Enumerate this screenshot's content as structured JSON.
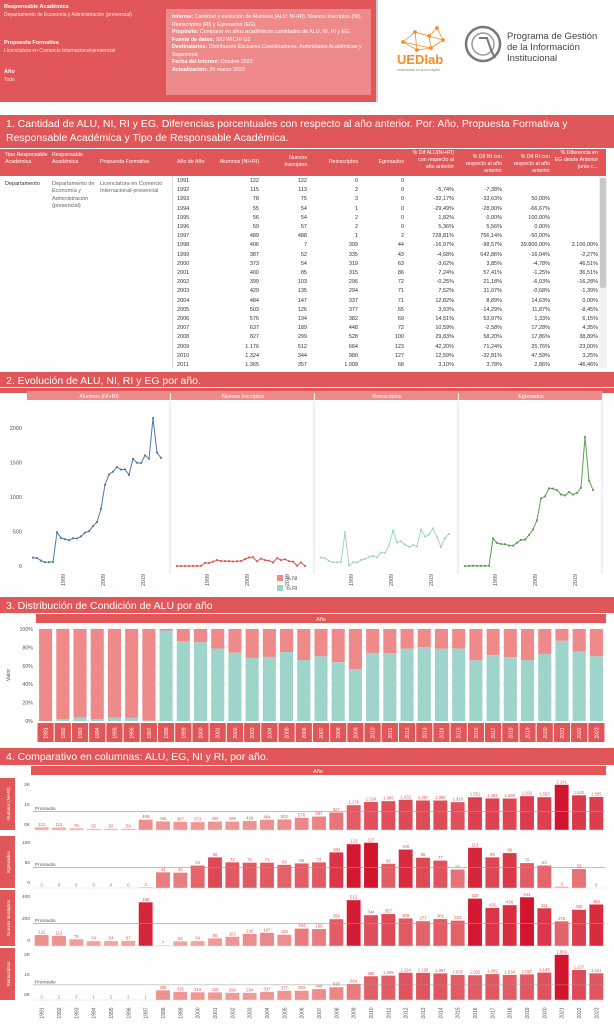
{
  "header": {
    "responsable_label": "Responsable Académica",
    "responsable_value": "Departamento de Economía y Administración (presencial)",
    "propuesta_label": "Propuesta Formativa",
    "propuesta_value": "Licenciatura en Comercio Internacional-presencial",
    "anio_label": "Año",
    "anio_value": "Todo"
  },
  "info": {
    "informe_label": "Informe:",
    "informe_value": "Cantidad y evolución de Alumnos (ALU: NI+RI), Nuevos Inscriptos (NI), Reinscriptos (RI) y Egresados (EG).",
    "proposito_label": "Propósito:",
    "proposito_value": "Comparar en años académicos cantidades de ALU, NI, RI y EG.",
    "fuente_label": "Fuente de datos:",
    "fuente_value": "SIU WICHI G3",
    "destinatarios_label": "Destinatarios:",
    "destinatarios_value": "Distribución Exclusiva Coordinadores, Autoridades Académicas y Superiores",
    "fecha_label": "Fecha del Informe:",
    "fecha_value": "Octubre 2022",
    "actualizacion_label": "Actualización:",
    "actualizacion_value": "20 marzo 2023"
  },
  "logos": {
    "ued": "UEDlab",
    "ued_sub": "universidad en la era digital",
    "prog_line1": "Programa de Gestión",
    "prog_line2": "de la Información",
    "prog_line3": "Institucional"
  },
  "colors": {
    "brand": "#e15759",
    "pink": "#ef8a8b",
    "teal": "#9fd4cb",
    "blue": "#4e79a7",
    "green": "#59a14f"
  },
  "sections": {
    "s1": "1. Cantidad de ALU, NI, RI y EG. Diferencias porcentuales con respecto al año anterior. Por: Año, Propuesta Formativa y Responsable Académica y Tipo de Responsable Académica.",
    "s2": "2. Evolución de ALU, NI, RI y EG por año.",
    "s3": "3. Distribución de Condición de ALU por año",
    "s4": "4. Comparativo en columnas: ALU, EG, NI y RI, por año."
  },
  "table": {
    "headers": [
      "Tipo Responsable Académica",
      "Responsable Académica",
      "Propuesta Formativa",
      "Año de Año",
      "Alumnos (NI+RI)",
      "Nuevos Inscriptos",
      "Reinscriptos",
      "Egresados",
      "% Dif ALU(NI+RI) con respecto al año anterior",
      "% Dif NI con respecto al año anterior",
      "% Dif RI con respecto al año anterior",
      "% Diferencia en EG desde Anterior junto c..."
    ],
    "tipo": "Departamento",
    "responsable": "Departamento de Economía y Administración (presencial)",
    "propuesta": "Licenciatura en Comercio Internacional-presencial",
    "rows": [
      [
        "1991",
        "122",
        "122",
        "0",
        "0",
        "",
        "",
        "",
        ""
      ],
      [
        "1992",
        "115",
        "113",
        "2",
        "0",
        "-5,74%",
        "-7,38%",
        "",
        ""
      ],
      [
        "1993",
        "78",
        "75",
        "3",
        "0",
        "-32,17%",
        "-33,63%",
        "50,00%",
        ""
      ],
      [
        "1994",
        "55",
        "54",
        "1",
        "0",
        "-29,49%",
        "-28,00%",
        "-66,67%",
        ""
      ],
      [
        "1995",
        "56",
        "54",
        "2",
        "0",
        "1,82%",
        "0,00%",
        "100,00%",
        ""
      ],
      [
        "1996",
        "59",
        "57",
        "2",
        "0",
        "5,36%",
        "5,56%",
        "0,00%",
        ""
      ],
      [
        "1997",
        "489",
        "488",
        "1",
        "2",
        "728,81%",
        "756,14%",
        "-50,00%",
        ""
      ],
      [
        "1998",
        "406",
        "7",
        "399",
        "44",
        "-16,97%",
        "-98,57%",
        "39.800,00%",
        "2.100,00%"
      ],
      [
        "1999",
        "387",
        "52",
        "335",
        "43",
        "-4,68%",
        "642,86%",
        "-16,04%",
        "-2,27%"
      ],
      [
        "2000",
        "373",
        "54",
        "319",
        "63",
        "-3,62%",
        "3,85%",
        "-4,78%",
        "46,51%"
      ],
      [
        "2001",
        "400",
        "85",
        "315",
        "86",
        "7,24%",
        "57,41%",
        "-1,25%",
        "36,51%"
      ],
      [
        "2002",
        "399",
        "103",
        "296",
        "72",
        "-0,25%",
        "21,18%",
        "-6,03%",
        "-16,28%"
      ],
      [
        "2003",
        "429",
        "135",
        "294",
        "71",
        "7,52%",
        "31,07%",
        "-0,68%",
        "-1,39%"
      ],
      [
        "2004",
        "484",
        "147",
        "337",
        "71",
        "12,82%",
        "8,89%",
        "14,63%",
        "0,00%"
      ],
      [
        "2005",
        "503",
        "126",
        "377",
        "65",
        "3,93%",
        "-14,29%",
        "11,87%",
        "-8,45%"
      ],
      [
        "2006",
        "576",
        "194",
        "382",
        "69",
        "14,51%",
        "53,97%",
        "1,33%",
        "6,15%"
      ],
      [
        "2007",
        "637",
        "189",
        "448",
        "72",
        "10,59%",
        "-2,58%",
        "17,28%",
        "4,35%"
      ],
      [
        "2008",
        "827",
        "299",
        "528",
        "100",
        "29,83%",
        "58,20%",
        "17,86%",
        "38,89%"
      ],
      [
        "2009",
        "1.176",
        "512",
        "664",
        "123",
        "42,20%",
        "71,24%",
        "25,76%",
        "23,00%"
      ],
      [
        "2010",
        "1.324",
        "344",
        "980",
        "127",
        "12,59%",
        "-32,81%",
        "47,59%",
        "3,25%"
      ],
      [
        "2011",
        "1.365",
        "357",
        "1.008",
        "68",
        "3,10%",
        "3,78%",
        "2,86%",
        "-46,46%"
      ]
    ]
  },
  "evolution": {
    "panels": [
      "Alumnos (NI+RI)",
      "Nuevos Inscriptos",
      "Reinscriptos",
      "Egresados"
    ],
    "y_ticks": [
      "2000",
      "1500",
      "1000",
      "500",
      "0"
    ],
    "x_ticks": [
      "1999",
      "2009",
      "2019"
    ],
    "legend": [
      {
        "label": "% NI",
        "color": "#ef8a8b"
      },
      {
        "label": "% RI",
        "color": "#9fd4cb"
      }
    ]
  },
  "distribution": {
    "header": "Año",
    "ylabel": "Valor",
    "y_ticks": [
      "100%",
      "80%",
      "60%",
      "40%",
      "20%",
      "0%"
    ]
  },
  "comparative": {
    "header": "Año",
    "row_labels": [
      "Alumnos (NI+RI)",
      "Egresados",
      "Nuevos Inscriptos",
      "Reinscriptos"
    ],
    "promedio": "Promedio"
  },
  "chart_data": {
    "type": "bar",
    "years": [
      "1991",
      "1992",
      "1993",
      "1994",
      "1995",
      "1996",
      "1997",
      "1998",
      "1999",
      "2000",
      "2001",
      "2002",
      "2003",
      "2004",
      "2005",
      "2006",
      "2007",
      "2008",
      "2009",
      "2010",
      "2011",
      "2012",
      "2013",
      "2014",
      "2015",
      "2016",
      "2017",
      "2018",
      "2019",
      "2020",
      "2021",
      "2022",
      "2023"
    ],
    "series": [
      {
        "name": "Alumnos (NI+RI)",
        "values": [
          122,
          115,
          78,
          55,
          56,
          59,
          489,
          406,
          387,
          373,
          400,
          399,
          429,
          484,
          503,
          576,
          637,
          827,
          1176,
          1324,
          1365,
          1432,
          1397,
          1398,
          1318,
          1551,
          1494,
          1490,
          1601,
          1553,
          2141,
          1642,
          1565
        ]
      },
      {
        "name": "Egresados",
        "values": [
          0,
          0,
          0,
          0,
          0,
          0,
          2,
          44,
          43,
          63,
          86,
          72,
          71,
          71,
          65,
          69,
          72,
          100,
          123,
          127,
          68,
          108,
          85,
          77,
          52,
          113,
          86,
          98,
          70,
          63,
          4,
          53,
          0
        ]
      },
      {
        "name": "Nuevos Inscriptos",
        "values": [
          122,
          113,
          75,
          54,
          54,
          57,
          488,
          7,
          52,
          54,
          85,
          103,
          135,
          147,
          126,
          194,
          189,
          299,
          512,
          344,
          357,
          308,
          277,
          301,
          283,
          529,
          425,
          456,
          544,
          421,
          275,
          405,
          464
        ]
      },
      {
        "name": "Reinscriptos",
        "values": [
          0,
          2,
          3,
          1,
          2,
          2,
          1,
          399,
          335,
          319,
          315,
          296,
          294,
          337,
          377,
          382,
          448,
          528,
          664,
          980,
          1008,
          1124,
          1120,
          1097,
          1035,
          1022,
          1069,
          1034,
          1057,
          1132,
          1866,
          1237,
          1101
        ]
      }
    ]
  }
}
